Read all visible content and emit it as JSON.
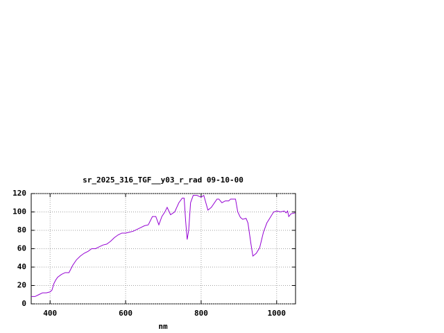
{
  "chart_data": {
    "type": "line",
    "title": "sr_2025_316_TGF__y03_r_rad 09-10-00",
    "x_label": "nm",
    "x": [
      350,
      360,
      370,
      380,
      390,
      400,
      405,
      410,
      415,
      420,
      430,
      440,
      450,
      460,
      470,
      480,
      490,
      500,
      510,
      520,
      530,
      540,
      550,
      560,
      570,
      580,
      590,
      600,
      610,
      620,
      630,
      640,
      650,
      660,
      671,
      680,
      688,
      696,
      704,
      710,
      719,
      730,
      741,
      750,
      755,
      759,
      763,
      767,
      772,
      779,
      789,
      800,
      807,
      818,
      827,
      842,
      847,
      855,
      864,
      873,
      878,
      891,
      897,
      904,
      910,
      919,
      924,
      932,
      937,
      946,
      955,
      965,
      974,
      983,
      992,
      1001,
      1010,
      1020,
      1025,
      1029,
      1032,
      1038,
      1049
    ],
    "series": [
      {
        "name": "sr_2025_316_TGF__y03_r_rad",
        "color": "#9400d3",
        "values": [
          8,
          8,
          10,
          12,
          12,
          13,
          15,
          22,
          26,
          29,
          32,
          34,
          34,
          42,
          48,
          52,
          55,
          57,
          60,
          60,
          62,
          64,
          65,
          68,
          72,
          75,
          77,
          77,
          78,
          79,
          81,
          83,
          85,
          86,
          95,
          95,
          86,
          95,
          100,
          105,
          97,
          100,
          110,
          115,
          115,
          90,
          70,
          80,
          110,
          118,
          118,
          116,
          118,
          102,
          105,
          114,
          114,
          110,
          112,
          112,
          114,
          114,
          100,
          94,
          92,
          93,
          88,
          65,
          52,
          55,
          61,
          78,
          88,
          94,
          100,
          101,
          100,
          101,
          99,
          101,
          95,
          98,
          99
        ]
      }
    ],
    "xlim": [
      350,
      1050
    ],
    "ylim": [
      0,
      120
    ],
    "xticks": [
      400,
      600,
      800,
      1000
    ],
    "yticks": [
      0,
      20,
      40,
      60,
      80,
      100,
      120
    ],
    "grid": true
  }
}
